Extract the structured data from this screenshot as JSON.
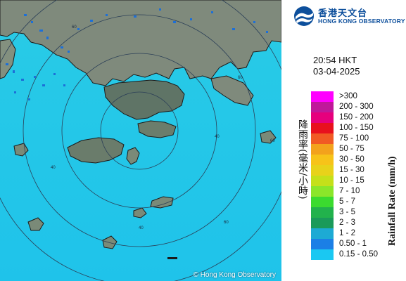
{
  "header": {
    "org_name_zh": "香港天文台",
    "org_name_en": "HONG KONG OBSERVATORY"
  },
  "timestamp": {
    "time": "20:54 HKT",
    "date": "03-04-2025"
  },
  "map": {
    "copyright": "© Hong Kong Observatory",
    "range_ring_labels": [
      "60",
      "60",
      "40",
      "60",
      "40",
      "60",
      "40"
    ],
    "colors": {
      "sea": "#23c9e8",
      "land": "#7f8a7c",
      "coast": "#1b1b1b",
      "rings": "#2b3f57"
    }
  },
  "legend": {
    "title_zh": "降雨率(毫米/小時)",
    "title_en": "Rainfall Rate (mm/h)",
    "items": [
      {
        "label": ">300",
        "color": "#ff00ff"
      },
      {
        "label": "200 - 300",
        "color": "#c0189a"
      },
      {
        "label": "150 - 200",
        "color": "#e6007d"
      },
      {
        "label": "100 - 150",
        "color": "#e8101e"
      },
      {
        "label": "75 - 100",
        "color": "#f15a24"
      },
      {
        "label": "50 - 75",
        "color": "#f3a21c"
      },
      {
        "label": "30 - 50",
        "color": "#f7c319"
      },
      {
        "label": "15 - 30",
        "color": "#e8d21a"
      },
      {
        "label": "10 - 15",
        "color": "#c5e01a"
      },
      {
        "label": "7 - 10",
        "color": "#8be62a"
      },
      {
        "label": "5 - 7",
        "color": "#3bdb2f"
      },
      {
        "label": "3 - 5",
        "color": "#22b24c"
      },
      {
        "label": "2 - 3",
        "color": "#1a9a5a"
      },
      {
        "label": "1 - 2",
        "color": "#1daad4"
      },
      {
        "label": "0.50 - 1",
        "color": "#1b7fe6"
      },
      {
        "label": "0.15 - 0.50",
        "color": "#1ac8f2"
      }
    ]
  }
}
